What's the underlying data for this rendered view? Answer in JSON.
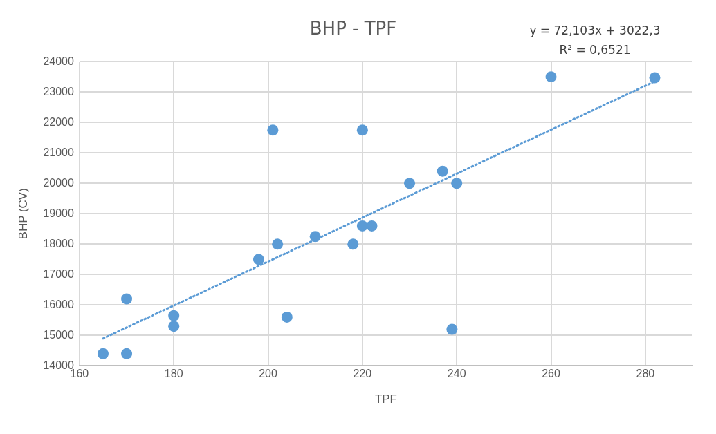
{
  "chart_data": {
    "type": "scatter",
    "title": "BHP - TPF",
    "xlabel": "TPF",
    "ylabel": "BHP (CV)",
    "annotations": [
      "y = 72,103x + 3022,3",
      "R² = 0,6521"
    ],
    "series": [
      {
        "color": "#5b9bd5",
        "marker": "circle",
        "x": [
          165,
          170,
          170,
          180,
          180,
          198,
          201,
          202,
          204,
          210,
          218,
          220,
          220,
          222,
          230,
          237,
          239,
          240,
          260,
          282
        ],
        "values": [
          14400,
          14400,
          16200,
          15650,
          15300,
          17500,
          21750,
          18000,
          15600,
          18250,
          18000,
          21750,
          18600,
          18600,
          20000,
          20400,
          15200,
          20000,
          23500,
          23470
        ]
      },
      {
        "type": "line",
        "color": "#5b9bd5",
        "line_style": "dotted",
        "marker": "none",
        "x": [
          165,
          282
        ],
        "values": [
          14900,
          23350
        ]
      }
    ],
    "xlim": [
      160,
      290
    ],
    "xticks": [
      160,
      180,
      200,
      220,
      240,
      260,
      280
    ],
    "ylim": [
      14000,
      24000
    ],
    "yticks": [
      14000,
      15000,
      16000,
      17000,
      18000,
      19000,
      20000,
      21000,
      22000,
      23000,
      24000
    ],
    "grid": true,
    "legend": false
  }
}
